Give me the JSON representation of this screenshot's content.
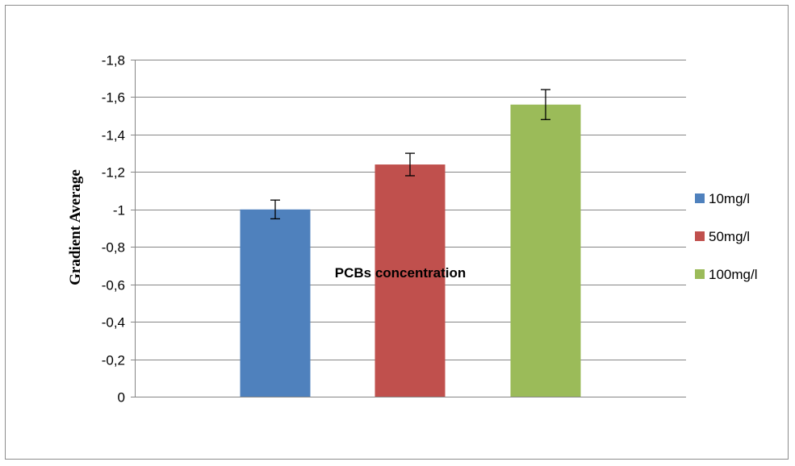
{
  "chart_data": {
    "type": "bar",
    "title": "",
    "xlabel": "PCBs concentration",
    "ylabel": "Gradient Average",
    "ylim": [
      0,
      -1.8
    ],
    "y_axis_reversed": true,
    "y_tick_step": -0.2,
    "y_tick_labels": [
      "0",
      "-0,2",
      "-0,4",
      "-0,6",
      "-0,8",
      "-1",
      "-1,2",
      "-1,4",
      "-1,6",
      "-1,8"
    ],
    "y_ticks": [
      0,
      -0.2,
      -0.4,
      -0.6,
      -0.8,
      -1,
      -1.2,
      -1.4,
      -1.6,
      -1.8
    ],
    "grid": true,
    "legend_position": "right",
    "series": [
      {
        "name": "10mg/l",
        "value": -1.0,
        "error": 0.05,
        "color": "#4f81bd"
      },
      {
        "name": "50mg/l",
        "value": -1.24,
        "error": 0.06,
        "color": "#c0504d"
      },
      {
        "name": "100mg/l",
        "value": -1.56,
        "error": 0.08,
        "color": "#9bbb59"
      }
    ]
  }
}
